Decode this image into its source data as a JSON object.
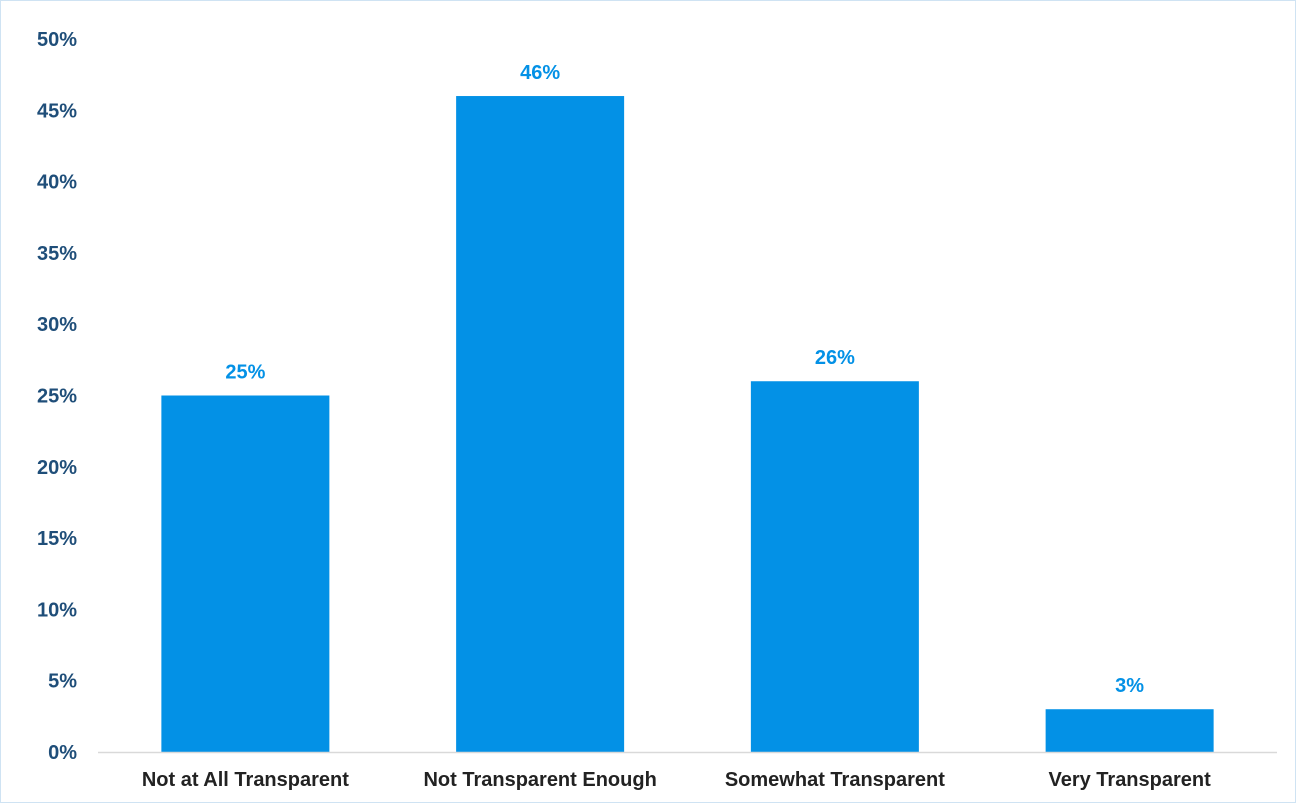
{
  "chart_data": {
    "type": "bar",
    "categories": [
      "Not at All Transparent",
      "Not Transparent Enough",
      "Somewhat Transparent",
      "Very Transparent"
    ],
    "values": [
      25,
      46,
      26,
      3
    ],
    "data_labels": [
      "25%",
      "46%",
      "26%",
      "3%"
    ],
    "title": "",
    "xlabel": "",
    "ylabel": "",
    "ylim": [
      0,
      50
    ],
    "y_ticks": [
      0,
      5,
      10,
      15,
      20,
      25,
      30,
      35,
      40,
      45,
      50
    ],
    "y_tick_labels": [
      "0%",
      "5%",
      "10%",
      "15%",
      "20%",
      "25%",
      "30%",
      "35%",
      "40%",
      "45%",
      "50%"
    ],
    "grid": false,
    "legend": "none",
    "colors": {
      "bar": "#0391e6",
      "data_label": "#0391e6",
      "axis_label": "#1f4e79",
      "category_label": "#222222",
      "axis_line": "#d9d9d9"
    }
  }
}
